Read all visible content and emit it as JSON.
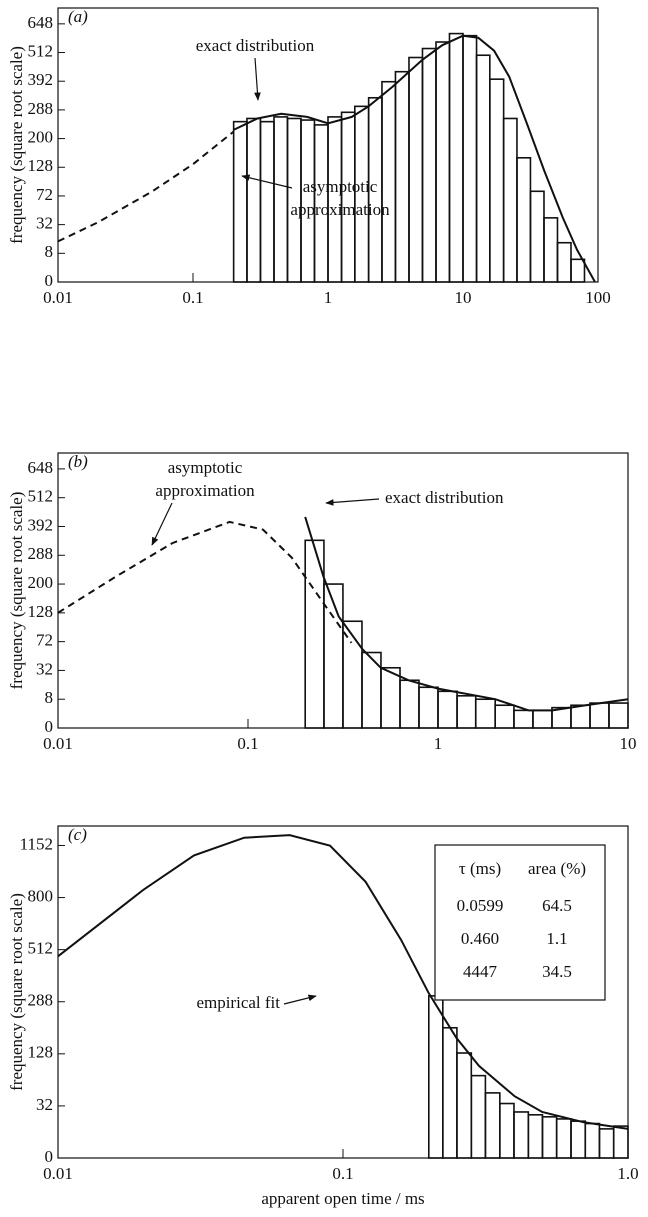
{
  "chart_data": [
    {
      "type": "histogram",
      "label": "(a)",
      "ylabel": "frequency (square root scale)",
      "xscale": "log",
      "yscale": "sqrt",
      "xlim": [
        0.01,
        100
      ],
      "xticks": [
        0.01,
        0.1,
        1,
        10,
        100
      ],
      "ylim": [
        0,
        730
      ],
      "yticks": [
        0,
        8,
        32,
        72,
        128,
        200,
        288,
        392,
        512,
        648
      ],
      "bins": [
        0.2,
        0.251,
        0.316,
        0.398,
        0.501,
        0.631,
        0.794,
        1,
        1.26,
        1.58,
        2,
        2.51,
        3.16,
        3.98,
        5.01,
        6.31,
        7.94,
        10,
        12.6,
        15.8,
        20,
        25.1,
        31.6,
        39.8,
        50.1,
        63.1,
        79.4
      ],
      "counts": [
        250,
        260,
        250,
        265,
        260,
        255,
        240,
        265,
        280,
        300,
        330,
        390,
        430,
        490,
        530,
        560,
        600,
        590,
        500,
        400,
        260,
        150,
        80,
        40,
        15,
        5
      ],
      "curves": [
        {
          "x": [
            0.2,
            0.3,
            0.45,
            0.7,
            1,
            1.5,
            2,
            3,
            5,
            7,
            10,
            13,
            17,
            22,
            30,
            40,
            55,
            70,
            95
          ],
          "values": [
            225,
            260,
            275,
            265,
            245,
            265,
            300,
            370,
            480,
            545,
            590,
            580,
            520,
            410,
            240,
            120,
            40,
            10,
            0
          ],
          "dashed": false
        },
        {
          "x": [
            0.01,
            0.02,
            0.05,
            0.1,
            0.2
          ],
          "values": [
            16,
            35,
            80,
            135,
            220
          ],
          "dashed": true
        }
      ],
      "annotations": [
        {
          "lines": [
            "exact distribution"
          ]
        },
        {
          "lines": [
            "asymptotic",
            "approximation"
          ]
        }
      ]
    },
    {
      "type": "histogram",
      "label": "(b)",
      "ylabel": "frequency (square root scale)",
      "xscale": "log",
      "yscale": "sqrt",
      "xlim": [
        0.01,
        10
      ],
      "xticks": [
        0.01,
        0.1,
        1,
        10
      ],
      "ylim": [
        0,
        730
      ],
      "yticks": [
        0,
        8,
        32,
        72,
        128,
        200,
        288,
        392,
        512,
        648
      ],
      "bins": [
        0.2,
        0.251,
        0.316,
        0.398,
        0.501,
        0.631,
        0.794,
        1,
        1.26,
        1.58,
        2,
        2.51,
        3.16,
        3.98,
        5.01,
        6.31,
        7.94,
        10
      ],
      "counts": [
        340,
        200,
        110,
        55,
        35,
        22,
        16,
        13,
        10,
        8,
        5,
        3,
        3,
        4,
        5,
        6,
        6
      ],
      "curves": [
        {
          "x": [
            0.2,
            0.25,
            0.3,
            0.4,
            0.5,
            0.7,
            1,
            2,
            3,
            4,
            6,
            10
          ],
          "values": [
            430,
            220,
            120,
            60,
            35,
            22,
            15,
            8,
            3,
            3,
            5,
            8
          ],
          "dashed": false
        },
        {
          "x": [
            0.01,
            0.02,
            0.04,
            0.08,
            0.12,
            0.17,
            0.25,
            0.35
          ],
          "values": [
            128,
            220,
            330,
            410,
            380,
            280,
            150,
            70
          ],
          "dashed": true
        }
      ],
      "annotations": [
        {
          "lines": [
            "asymptotic",
            "approximation"
          ]
        },
        {
          "lines": [
            "exact distribution"
          ]
        }
      ]
    },
    {
      "type": "histogram",
      "label": "(c)",
      "ylabel": "frequency (square root scale)",
      "xlabel": "apparent open time / ms",
      "xscale": "log",
      "yscale": "sqrt",
      "xlim": [
        0.01,
        1
      ],
      "xticks": [
        0.01,
        0.1,
        {
          "value": 1,
          "label": "1.0"
        }
      ],
      "ylim": [
        0,
        1300
      ],
      "yticks": [
        0,
        32,
        128,
        288,
        512,
        800,
        1152
      ],
      "bins": [
        0.2,
        0.224,
        0.251,
        0.282,
        0.316,
        0.355,
        0.398,
        0.447,
        0.501,
        0.562,
        0.631,
        0.708,
        0.794,
        0.891,
        1
      ],
      "counts": [
        310,
        200,
        130,
        80,
        50,
        35,
        25,
        22,
        20,
        18,
        16,
        14,
        10,
        12
      ],
      "curves": [
        {
          "x": [
            0.01,
            0.02,
            0.03,
            0.045,
            0.065,
            0.09,
            0.12,
            0.16,
            0.2,
            0.25,
            0.3,
            0.4,
            0.5,
            0.7,
            1
          ],
          "values": [
            480,
            850,
            1080,
            1210,
            1230,
            1150,
            900,
            560,
            320,
            170,
            100,
            45,
            25,
            15,
            10
          ],
          "dashed": false
        }
      ],
      "annotations": [
        {
          "lines": [
            "empirical fit"
          ]
        }
      ],
      "table": {
        "columns": [
          "τ (ms)",
          "area (%)"
        ],
        "rows": [
          [
            "0.0599",
            "64.5"
          ],
          [
            "0.460",
            "1.1"
          ],
          [
            "4447",
            "34.5"
          ]
        ]
      }
    }
  ]
}
